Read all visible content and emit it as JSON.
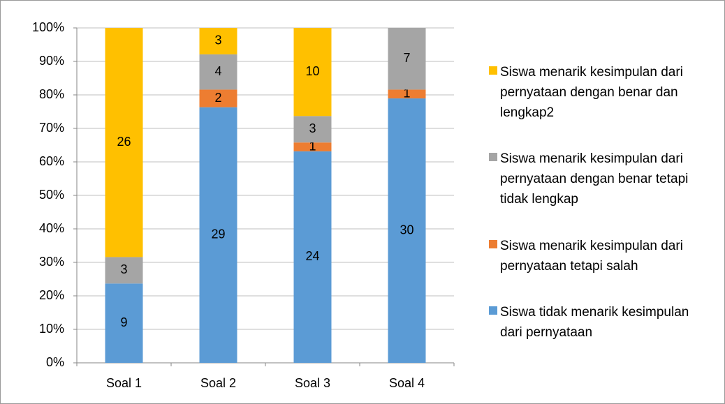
{
  "chart_data": {
    "type": "bar",
    "stacked": "percent",
    "categories": [
      "Soal 1",
      "Soal 2",
      "Soal 3",
      "Soal 4"
    ],
    "series": [
      {
        "name": "Siswa tidak menarik kesimpulan dari pernyataan",
        "color": "#5b9bd5",
        "values": [
          9,
          29,
          24,
          30
        ]
      },
      {
        "name": "Siswa menarik kesimpulan dari pernyataan tetapi salah",
        "color": "#ed7d31",
        "values": [
          null,
          2,
          1,
          1
        ]
      },
      {
        "name": "Siswa menarik kesimpulan dari pernyataan dengan benar tetapi tidak lengkap",
        "color": "#a5a5a5",
        "values": [
          3,
          4,
          3,
          7
        ]
      },
      {
        "name": "Siswa menarik kesimpulan dari pernyataan dengan benar dan lengkap2",
        "color": "#ffc000",
        "values": [
          26,
          3,
          10,
          null
        ]
      }
    ],
    "ylim": [
      0,
      100
    ],
    "yticks": [
      {
        "value": 0,
        "label": "0%"
      },
      {
        "value": 10,
        "label": "10%"
      },
      {
        "value": 20,
        "label": "20%"
      },
      {
        "value": 30,
        "label": "30%"
      },
      {
        "value": 40,
        "label": "40%"
      },
      {
        "value": 50,
        "label": "50%"
      },
      {
        "value": 60,
        "label": "60%"
      },
      {
        "value": 70,
        "label": "70%"
      },
      {
        "value": 80,
        "label": "80%"
      },
      {
        "value": 90,
        "label": "90%"
      },
      {
        "value": 100,
        "label": "100%"
      }
    ],
    "grid": true,
    "legend": "right"
  }
}
